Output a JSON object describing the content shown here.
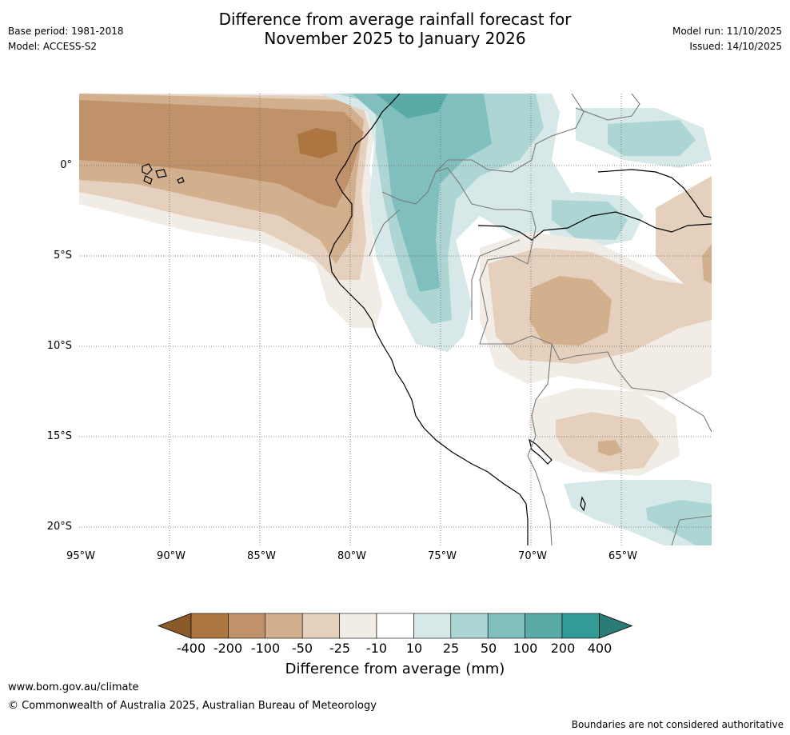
{
  "title": {
    "line1": "Difference from average rainfall forecast for",
    "line2": "November 2025 to January 2026"
  },
  "meta": {
    "base_period": "Base period: 1981-2018",
    "model": "Model: ACCESS-S2",
    "model_run": "Model run: 11/10/2025",
    "issued": "Issued: 14/10/2025"
  },
  "axes": {
    "lat_labels": [
      "0°",
      "5°S",
      "10°S",
      "15°S",
      "20°S"
    ],
    "lon_labels": [
      "95°W",
      "90°W",
      "85°W",
      "80°W",
      "75°W",
      "70°W",
      "65°W"
    ]
  },
  "colorbar": {
    "title": "Difference from average (mm)",
    "ticks": [
      "-400",
      "-200",
      "-100",
      "-50",
      "-25",
      "-10",
      "10",
      "25",
      "50",
      "100",
      "200",
      "400"
    ],
    "colors": [
      "#8a5a2a",
      "#ad7640",
      "#c0926a",
      "#d2b08e",
      "#e4d0bc",
      "#f2ece6",
      "#ffffff",
      "#d6e8e7",
      "#acd5d4",
      "#80bfbe",
      "#5aaaa8",
      "#349a96",
      "#2a7a78"
    ]
  },
  "footer": {
    "url": "www.bom.gov.au/climate",
    "copyright": "© Commonwealth of Australia 2025, Australian Bureau of Meteorology",
    "disclaimer": "Boundaries are not considered authoritative"
  }
}
